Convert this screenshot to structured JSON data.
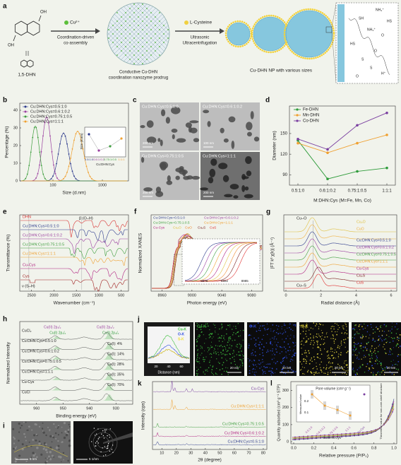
{
  "panel_a": {
    "letter": "a",
    "dhn_groups": [
      "OH",
      "OH"
    ],
    "dhn_name": "1,5-DHN",
    "metal": "Cu²⁺",
    "step1": [
      "Coordination-driven",
      "co-assembly"
    ],
    "prodrug": [
      "Conductive Cu-DHN",
      "coordination nanozyme prodrug"
    ],
    "ligand": "L-Cysteine",
    "step2": [
      "Ultrasonic",
      "Ultracentrifugation"
    ],
    "product": "Cu-DHN NP with various sizes",
    "ligand_structure": [
      "NH₃⁺",
      "SH",
      "HS",
      "NH₃⁺",
      "O",
      "HS",
      "O",
      "S",
      "S",
      "H⁺",
      "O"
    ]
  },
  "panel_b": {
    "letter": "b",
    "y_label": "Percentage (%)",
    "x_label": "Size (d.nm)",
    "yticks": [
      0,
      10,
      20,
      30,
      40
    ],
    "xticks": [
      100,
      1000
    ],
    "series": [
      {
        "name": "Cu:DHN:Cys=0.5:1:0",
        "color": "#2d3a8c"
      },
      {
        "name": "Cu:DHN:Cys=0.6:1:0.2",
        "color": "#9b3fa0"
      },
      {
        "name": "Cu:DHN:Cys=0.75:1:0.5",
        "color": "#3e9e3e"
      },
      {
        "name": "Cu:DHN:Cys=1:1:1",
        "color": "#f0a030"
      }
    ],
    "inset": {
      "y_label": "Size (d.nm)",
      "x_label": "Cu:DHN:Cys",
      "categories": [
        "0.5:1:0",
        "0.6:1:0.2",
        "0.75:1:0.5",
        "1:1:1"
      ]
    }
  },
  "panel_c": {
    "letter": "c",
    "images": [
      "Cu:DHN:Cys=0.5:1:0",
      "Cu:DHN:Cys=0.6:1:0.2",
      "Cu:DHN:Cys=0.75:1:0.5",
      "Cu:DHN:Cys=1:1:1"
    ],
    "scale_bars": [
      "200 nm",
      "100 nm",
      "200 nm",
      "200 nm"
    ]
  },
  "panel_d": {
    "letter": "d",
    "chart_data": {
      "type": "line",
      "y_label": "Diameter (nm)",
      "x_label": "M:DHN:Cys (M=Fe, Mn, Co)",
      "categories": [
        "0.5:1:0",
        "0.6:1:0.2",
        "0.75:1:0.5",
        "1:1:1"
      ],
      "ylim": [
        75,
        190
      ],
      "yticks": [
        90,
        120,
        150
      ],
      "series": [
        {
          "name": "Fe-DHN",
          "color": "#2e9b3a",
          "values": [
            140,
            84,
            95,
            100
          ]
        },
        {
          "name": "Mn-DHN",
          "color": "#f0a030",
          "values": [
            136,
            122,
            136,
            148
          ]
        },
        {
          "name": "Co-DHN",
          "color": "#7a3fa0",
          "values": [
            142,
            127,
            162,
            180
          ]
        }
      ]
    }
  },
  "panel_e": {
    "letter": "e",
    "y_label": "Transmittance (%)",
    "x_label": "Wavenumber (cm⁻¹)",
    "xticks": [
      2500,
      2000,
      1500,
      1000,
      500
    ],
    "annotations": [
      "β (O–H)",
      "ν (S–H)"
    ],
    "curves": [
      {
        "name": "DHN",
        "color": "#d83030"
      },
      {
        "name": "Cu:DHN:Cys=0.5:1:0",
        "color": "#2d3a8c"
      },
      {
        "name": "Cu:DHN:Cys=0.6:1:0.2",
        "color": "#9b3fa0"
      },
      {
        "name": "Cu:DHN:Cys=0.75:1:0.5",
        "color": "#3e9e3e"
      },
      {
        "name": "Cu:DHN:Cys=1:1:1",
        "color": "#f0a030"
      },
      {
        "name": "Cu-Cys",
        "color": "#b02080"
      },
      {
        "name": "Cys",
        "color": "#a02020"
      }
    ]
  },
  "panel_f": {
    "letter": "f",
    "y_label": "Normalized XANES",
    "x_label": "Photon energy (eV)",
    "xticks": [
      8960,
      9000,
      9040,
      9080
    ],
    "inset_xticks": [
      8979,
      8982,
      8985
    ],
    "legend": [
      {
        "name": "Cu:DHN:Cys=0.5:1:0",
        "color": "#2d3a8c"
      },
      {
        "name": "Cu:DHN:Cys=0.6:1:0.2",
        "color": "#9b3fa0"
      },
      {
        "name": "Cu:DHN:Cys=0.75:1:0.5",
        "color": "#3e9e3e"
      },
      {
        "name": "Cu:DHN:Cys=1:1:1",
        "color": "#f0a030"
      },
      {
        "name": "Cu-Cys",
        "color": "#b02080"
      },
      {
        "name": "Cu₂O",
        "color": "#e0c040"
      },
      {
        "name": "CuO",
        "color": "#f08a30"
      },
      {
        "name": "Cu₂S",
        "color": "#7a2020"
      },
      {
        "name": "CuS",
        "color": "#e03030"
      }
    ]
  },
  "panel_g": {
    "letter": "g",
    "y_label": "|FT k³ χ(k)| (Å⁻⁴)",
    "x_label": "Radial distance (Å)",
    "xticks": [
      0,
      2,
      4,
      6
    ],
    "annotations": [
      "Cu–O",
      "Cu–S"
    ],
    "curves": [
      {
        "name": "Cu₂O",
        "color": "#e0c040"
      },
      {
        "name": "CuO",
        "color": "#f0b040"
      },
      {
        "name": "Cu:DHN:Cys=0.5:1:0",
        "color": "#2d3a8c"
      },
      {
        "name": "Cu:DHN:Cys=0.6:1:0.2",
        "color": "#9b3fa0"
      },
      {
        "name": "Cu:DHN:Cys=0.75:1:0.5",
        "color": "#3e9e3e"
      },
      {
        "name": "Cu:DHN:Cys=1:1:1",
        "color": "#f0a030"
      },
      {
        "name": "Cu-Cys",
        "color": "#b02080"
      },
      {
        "name": "Cu₂S",
        "color": "#7a2020"
      },
      {
        "name": "CuS",
        "color": "#e03030"
      }
    ]
  },
  "panel_h": {
    "letter": "h",
    "y_label": "Normalized Intensity",
    "x_label": "Binding energy (eV)",
    "xticks": [
      960,
      950,
      940,
      930
    ],
    "rows": [
      "CuCl₂",
      "Cu:DHN:Cys=0.5:1:0",
      "Cu:DHN:Cys=0.6:1:0.2",
      "Cu:DHN:Cys=0.75:1:0.5",
      "Cu:DHN:Cys=1:1:1",
      "Cu-Cys",
      "CuCl"
    ],
    "ratios": [
      "Cu(I): 4%",
      "Cu(I): 14%",
      "Cu(I): 28%",
      "Cu(I): 35%",
      "Cu(I): 70%"
    ],
    "annotations": [
      "Cu(II) 2p₁/₂",
      "Cu(I) 2p₁/₂",
      "Cu(II) 2p₃/₂",
      "Cu(I) 2p₃/₂"
    ]
  },
  "panel_i": {
    "letter": "i",
    "scale_bars": [
      "5 nm",
      "5 1/nm"
    ]
  },
  "panel_j": {
    "letter": "j",
    "profile": {
      "x_label": "Distance (nm)",
      "xticks": [
        20,
        40,
        60
      ],
      "legend": [
        "Cu-K",
        "O-K",
        "S-K"
      ]
    },
    "maps": [
      "Cu-K",
      "O-K",
      "S-K"
    ],
    "scale_bars": [
      "20 nm",
      "20 nm",
      "20 nm",
      "20 nm"
    ]
  },
  "panel_k": {
    "letter": "k",
    "y_label": "Intensity (cps)",
    "x_label": "2θ (degree)",
    "xticks": [
      10,
      20,
      30,
      40,
      50,
      60,
      70,
      80
    ],
    "curves": [
      {
        "name": "Cu-Cys",
        "color": "#7a3fa0"
      },
      {
        "name": "Cu:DHN:Cys=1:1:1",
        "color": "#f0a030"
      },
      {
        "name": "Cu:DHN:Cys=0.75:1:0.5",
        "color": "#3e9e3e"
      },
      {
        "name": "Cu:DHN:Cys=0.6:1:0.2",
        "color": "#b02080"
      },
      {
        "name": "Cu:DHN:Cys=0.5:1:0",
        "color": "#2d3a8c"
      }
    ]
  },
  "panel_l": {
    "letter": "l",
    "y_label": "Quantity adsorbed (cm³ g⁻¹ STP)",
    "x_label": "Relative pressure (P/P₀)",
    "xticks": [
      {
        "value": 0,
        "label": "0.0"
      },
      0.2,
      0.4,
      0.6,
      0.8,
      {
        "value": 1,
        "label": "1.0"
      }
    ],
    "yticks": [
      0,
      100,
      200,
      300
    ],
    "inset": {
      "title": "Pore volume (cm³ g⁻¹)",
      "y_label": "Measured value",
      "y2_label": "Theoretical value for non-core-shell structure",
      "yticks": [
        0.1,
        0.2
      ],
      "categories": [
        "0.5:1:0",
        "0.6:1:0.2",
        "0.75:1:0.5",
        "1:1:1"
      ],
      "x_label": "Cu:DHN:Cys",
      "extra": "Cu-Cys"
    }
  }
}
